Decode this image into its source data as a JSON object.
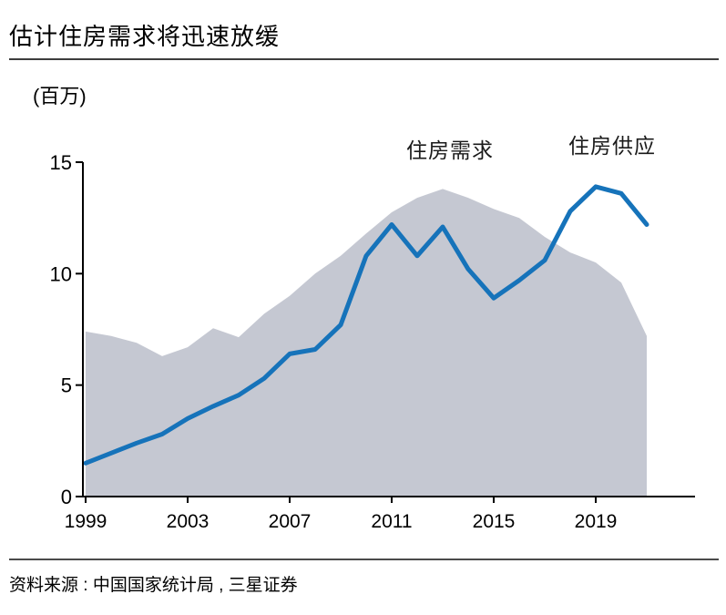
{
  "title": "估计住房需求将迅速放缓",
  "unit_label": "(百万)",
  "source": "资料来源 : 中国国家统计局 , 三星证券",
  "chart_data": {
    "type": "line",
    "title": "估计住房需求将迅速放缓",
    "ylabel": "(百万)",
    "xlabel": "",
    "x": [
      1999,
      2000,
      2001,
      2002,
      2003,
      2004,
      2005,
      2006,
      2007,
      2008,
      2009,
      2010,
      2011,
      2012,
      2013,
      2014,
      2015,
      2016,
      2017,
      2018,
      2019,
      2020,
      2021
    ],
    "series": [
      {
        "name": "住房需求",
        "type": "line",
        "color": "#1673ba",
        "values": [
          1.5,
          1.95,
          2.4,
          2.8,
          3.5,
          4.05,
          4.55,
          5.3,
          6.4,
          6.6,
          7.7,
          10.8,
          12.2,
          10.8,
          12.1,
          10.2,
          8.9,
          9.7,
          10.6,
          12.8,
          13.9,
          13.6,
          12.2
        ]
      },
      {
        "name": "住房供应",
        "type": "area",
        "color": "#c5c8d2",
        "values": [
          7.4,
          7.2,
          6.9,
          6.3,
          6.7,
          7.55,
          7.15,
          8.2,
          9.0,
          10.0,
          10.8,
          11.8,
          12.75,
          13.4,
          13.8,
          13.4,
          12.9,
          12.5,
          11.65,
          10.95,
          10.5,
          9.6,
          7.2
        ]
      }
    ],
    "x_ticks": [
      1999,
      2003,
      2007,
      2011,
      2015,
      2019
    ],
    "y_ticks": [
      0,
      5,
      10,
      15
    ],
    "ylim": [
      0,
      15
    ],
    "grid": "off",
    "legend_position": "labels above lines (inside plot, top right)",
    "axis_color": "#000000"
  }
}
